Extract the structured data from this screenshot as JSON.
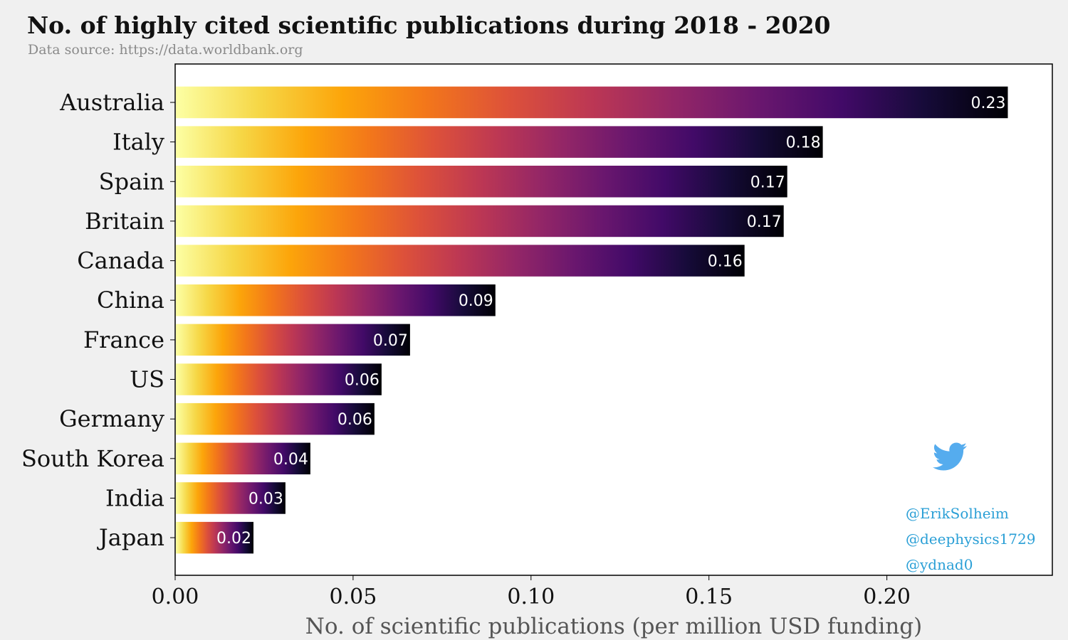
{
  "title": "No. of highly cited scientific publications during 2018 - 2020",
  "subtitle": "Data source: https://data.worldbank.org",
  "credits": [
    "@ErikSolheim",
    "@deephysics1729",
    "@ydnad0"
  ],
  "icon": "twitter-bird-icon",
  "colors": {
    "background": "#f0f0f0",
    "plot_background": "#ffffff",
    "credit_text": "#2a9fd6",
    "twitter_blue": "#55acee",
    "gradient_inferno": [
      "#fcffa4",
      "#f6d746",
      "#fca50a",
      "#f3771a",
      "#dd513a",
      "#bc3754",
      "#932667",
      "#6a176e",
      "#420a68",
      "#160b39",
      "#000004"
    ]
  },
  "chart_data": {
    "type": "bar",
    "orientation": "horizontal",
    "categories": [
      "Australia",
      "Italy",
      "Spain",
      "Britain",
      "Canada",
      "China",
      "France",
      "US",
      "Germany",
      "South Korea",
      "India",
      "Japan"
    ],
    "values": [
      0.234,
      0.182,
      0.172,
      0.171,
      0.16,
      0.09,
      0.066,
      0.058,
      0.056,
      0.038,
      0.031,
      0.022
    ],
    "labels": [
      "0.23",
      "0.18",
      "0.17",
      "0.17",
      "0.16",
      "0.09",
      "0.07",
      "0.06",
      "0.06",
      "0.04",
      "0.03",
      "0.02"
    ],
    "xlabel": "No. of scientific publications (per million USD funding)",
    "ylabel": "",
    "xlim": [
      0,
      0.2465
    ],
    "xticks": [
      0,
      0.05,
      0.1,
      0.15,
      0.2
    ],
    "xtick_labels": [
      "0.00",
      "0.05",
      "0.10",
      "0.15",
      "0.20"
    ],
    "grid": false,
    "legend": "none"
  }
}
